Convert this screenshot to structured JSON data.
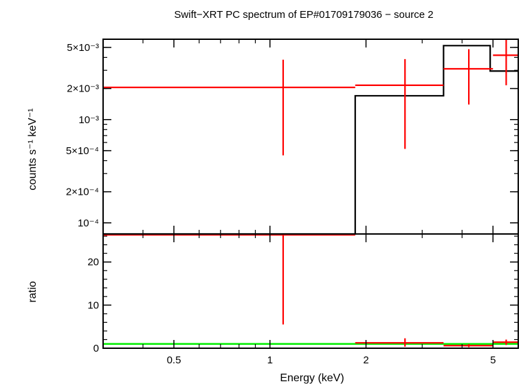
{
  "chart_data": [
    {
      "type": "line",
      "title": "Swift−XRT PC spectrum of EP#01709179036 − source 2",
      "ylabel": "counts s⁻¹ keV⁻¹",
      "xlabel": "",
      "x_scale": "log",
      "y_scale": "log",
      "xlim": [
        0.3,
        6.0
      ],
      "ylim": [
        7.8e-05,
        0.006
      ],
      "y_ticks": [
        {
          "value": 0.005,
          "label": "5×10⁻³"
        },
        {
          "value": 0.002,
          "label": "2×10⁻³"
        },
        {
          "value": 0.001,
          "label": "10⁻³"
        },
        {
          "value": 0.0005,
          "label": "5×10⁻⁴"
        },
        {
          "value": 0.0002,
          "label": "2×10⁻⁴"
        },
        {
          "value": 0.0001,
          "label": "10⁻⁴"
        }
      ],
      "data_points": [
        {
          "x": 1.1,
          "x_low": 0.3,
          "x_high": 1.85,
          "y": 0.00205,
          "y_low": 0.00045,
          "y_high": 0.0038
        },
        {
          "x": 2.65,
          "x_low": 1.85,
          "x_high": 3.5,
          "y": 0.00215,
          "y_low": 0.00052,
          "y_high": 0.00385
        },
        {
          "x": 4.2,
          "x_low": 3.5,
          "x_high": 5.0,
          "y": 0.0031,
          "y_low": 0.0014,
          "y_high": 0.0048
        },
        {
          "x": 5.5,
          "x_low": 5.0,
          "x_high": 6.0,
          "y": 0.0042,
          "y_low": 0.00215,
          "y_high": 0.006
        }
      ],
      "model_steps": [
        {
          "x_low": 0.3,
          "x_high": 1.85,
          "y": 5e-05
        },
        {
          "x_low": 1.85,
          "x_high": 3.5,
          "y": 0.0017
        },
        {
          "x_low": 3.5,
          "x_high": 4.9,
          "y": 0.0052
        },
        {
          "x_low": 4.9,
          "x_high": 6.0,
          "y": 0.00295
        }
      ],
      "colors": {
        "data": "#ff0000",
        "model": "#000000"
      }
    },
    {
      "type": "line",
      "title": "",
      "ylabel": "ratio",
      "xlabel": "Energy (keV)",
      "x_scale": "log",
      "y_scale": "linear",
      "xlim": [
        0.3,
        6.0
      ],
      "ylim": [
        0,
        26.5
      ],
      "y_ticks": [
        {
          "value": 0,
          "label": "0"
        },
        {
          "value": 10,
          "label": "10"
        },
        {
          "value": 20,
          "label": "20"
        }
      ],
      "x_ticks": [
        {
          "value": 0.5,
          "label": "0.5"
        },
        {
          "value": 1,
          "label": "1"
        },
        {
          "value": 2,
          "label": "2"
        },
        {
          "value": 5,
          "label": "5"
        }
      ],
      "data_points": [
        {
          "x": 1.1,
          "x_low": 0.3,
          "x_high": 1.85,
          "y": 26.3,
          "y_low": 5.5,
          "y_high": 26.5
        },
        {
          "x": 2.65,
          "x_low": 1.85,
          "x_high": 3.5,
          "y": 1.25,
          "y_low": 0.35,
          "y_high": 2.3
        },
        {
          "x": 4.2,
          "x_low": 3.5,
          "x_high": 5.0,
          "y": 0.6,
          "y_low": 0.25,
          "y_high": 0.95
        },
        {
          "x": 5.5,
          "x_low": 5.0,
          "x_high": 6.0,
          "y": 1.4,
          "y_low": 0.75,
          "y_high": 2.0
        }
      ],
      "reference_line": {
        "y": 1.0,
        "color": "#00ee00"
      },
      "colors": {
        "data": "#ff0000"
      }
    }
  ]
}
